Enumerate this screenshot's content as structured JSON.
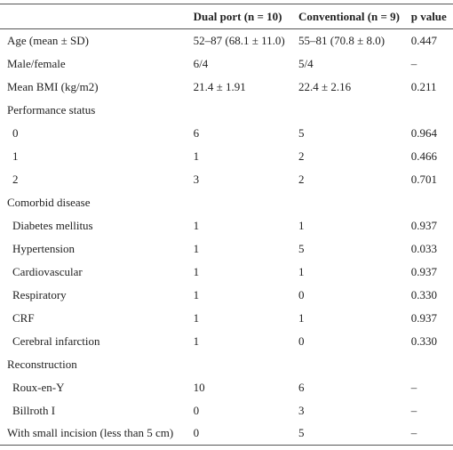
{
  "header": {
    "col0": "",
    "col1": "Dual port (n = 10)",
    "col2": "Conventional (n = 9)",
    "col3": "p value"
  },
  "rows": [
    {
      "label": "Age (mean ± SD)",
      "a": "52–87 (68.1 ± 11.0)",
      "b": "55–81 (70.8 ± 8.0)",
      "p": "0.447",
      "indent": false
    },
    {
      "label": "Male/female",
      "a": "6/4",
      "b": "5/4",
      "p": "–",
      "indent": false
    },
    {
      "label": "Mean BMI (kg/m2)",
      "a": "21.4 ± 1.91",
      "b": "22.4 ± 2.16",
      "p": "0.211",
      "indent": false
    },
    {
      "label": "Performance status",
      "a": "",
      "b": "",
      "p": "",
      "indent": false
    },
    {
      "label": "0",
      "a": "6",
      "b": "5",
      "p": "0.964",
      "indent": true
    },
    {
      "label": "1",
      "a": "1",
      "b": "2",
      "p": "0.466",
      "indent": true
    },
    {
      "label": "2",
      "a": "3",
      "b": "2",
      "p": "0.701",
      "indent": true
    },
    {
      "label": "Comorbid disease",
      "a": "",
      "b": "",
      "p": "",
      "indent": false
    },
    {
      "label": "Diabetes mellitus",
      "a": "1",
      "b": "1",
      "p": "0.937",
      "indent": true
    },
    {
      "label": "Hypertension",
      "a": "1",
      "b": "5",
      "p": "0.033",
      "indent": true
    },
    {
      "label": "Cardiovascular",
      "a": "1",
      "b": "1",
      "p": "0.937",
      "indent": true
    },
    {
      "label": "Respiratory",
      "a": "1",
      "b": "0",
      "p": "0.330",
      "indent": true
    },
    {
      "label": "CRF",
      "a": "1",
      "b": "1",
      "p": "0.937",
      "indent": true
    },
    {
      "label": "Cerebral infarction",
      "a": "1",
      "b": "0",
      "p": "0.330",
      "indent": true
    },
    {
      "label": "Reconstruction",
      "a": "",
      "b": "",
      "p": "",
      "indent": false
    },
    {
      "label": "Roux-en-Y",
      "a": "10",
      "b": "6",
      "p": "–",
      "indent": true
    },
    {
      "label": "Billroth I",
      "a": "0",
      "b": "3",
      "p": "–",
      "indent": true
    },
    {
      "label": "With small incision (less than 5 cm)",
      "a": "0",
      "b": "5",
      "p": "–",
      "indent": false
    }
  ]
}
